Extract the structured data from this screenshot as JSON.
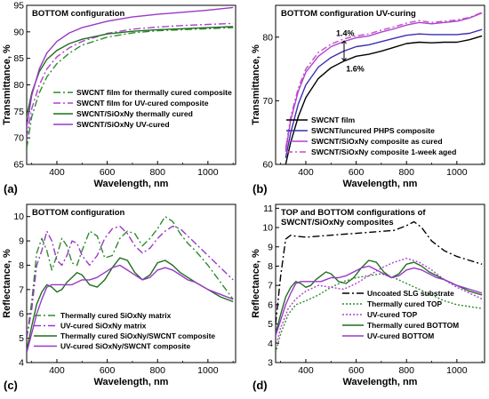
{
  "chart_data": [
    {
      "type": "line",
      "panel_label": "(a)",
      "title": "BOTTOM configuration",
      "xlabel": "Wavelength, nm",
      "ylabel": "Transmittance, %",
      "xlim": [
        280,
        1110
      ],
      "ylim": [
        65,
        95
      ],
      "xticks": [
        400,
        600,
        800,
        1000
      ],
      "yticks": [
        65,
        70,
        75,
        80,
        85,
        90,
        95
      ],
      "legend_position": "bottom-right",
      "series": [
        {
          "name": "SWCNT film for thermally cured composite",
          "color": "#2e8b2e",
          "dash": "8,3,2,3",
          "x": [
            280,
            300,
            330,
            360,
            400,
            450,
            500,
            600,
            700,
            800,
            900,
            1000,
            1100
          ],
          "y": [
            68,
            74,
            78.5,
            81.5,
            84,
            86,
            87.5,
            89,
            89.8,
            90.2,
            90.4,
            90.6,
            90.8
          ]
        },
        {
          "name": "SWCNT film for UV-cured composite",
          "color": "#b040d0",
          "dash": "8,3,2,3",
          "x": [
            280,
            300,
            330,
            360,
            400,
            450,
            500,
            600,
            700,
            800,
            900,
            1000,
            1100
          ],
          "y": [
            70,
            75.5,
            80,
            83,
            85.3,
            87,
            88.2,
            89.7,
            90.5,
            90.9,
            91.2,
            91.4,
            91.6
          ]
        },
        {
          "name": "SWCNT/SiOxNy thermally cured",
          "color": "#1f6e1f",
          "dash": "",
          "x": [
            280,
            300,
            330,
            360,
            400,
            450,
            500,
            600,
            700,
            800,
            900,
            1000,
            1100
          ],
          "y": [
            74,
            78.5,
            82.5,
            84.8,
            86.5,
            87.8,
            88.6,
            89.6,
            90.1,
            90.4,
            90.6,
            90.8,
            91
          ]
        },
        {
          "name": "SWCNT/SiOxNy UV-cured",
          "color": "#9a38c8",
          "dash": "",
          "x": [
            280,
            300,
            330,
            360,
            400,
            450,
            500,
            600,
            700,
            800,
            900,
            1000,
            1100
          ],
          "y": [
            72,
            78,
            83,
            86,
            88.2,
            89.8,
            90.8,
            92,
            92.8,
            93.3,
            93.7,
            94.1,
            94.6
          ]
        }
      ]
    },
    {
      "type": "line",
      "panel_label": "(b)",
      "title": "BOTTOM configuration UV-curing",
      "xlabel": "Wavelength, nm",
      "ylabel": "Transmittance, %",
      "xlim": [
        280,
        1110
      ],
      "ylim": [
        60,
        85
      ],
      "xticks": [
        400,
        600,
        800,
        1000
      ],
      "yticks": [
        60,
        70,
        80
      ],
      "legend_position": "bottom-right",
      "annotations": [
        {
          "text": "1.4%",
          "x": 520,
          "y": 80.2
        },
        {
          "text": "1.6%",
          "x": 560,
          "y": 74.6
        }
      ],
      "series": [
        {
          "name": "SWCNT film",
          "color": "#000000",
          "dash": "",
          "x": [
            320,
            340,
            370,
            400,
            450,
            500,
            550,
            600,
            650,
            700,
            750,
            800,
            850,
            900,
            950,
            1000,
            1050,
            1100
          ],
          "y": [
            60,
            63.5,
            67.5,
            70.5,
            73.5,
            75.2,
            76.2,
            77,
            77.3,
            77.8,
            78.4,
            79,
            79.2,
            79.1,
            79.2,
            79.2,
            79.6,
            80.2
          ]
        },
        {
          "name": "SWCNT/uncured PHPS composite",
          "color": "#3a2fb0",
          "dash": "",
          "x": [
            320,
            340,
            370,
            400,
            450,
            500,
            550,
            600,
            650,
            700,
            750,
            800,
            850,
            900,
            950,
            1000,
            1050,
            1100
          ],
          "y": [
            61,
            65,
            69.5,
            72.5,
            75.3,
            76.8,
            77.8,
            78.5,
            78.8,
            79.3,
            79.8,
            80.3,
            80.5,
            80.4,
            80.4,
            80.4,
            80.6,
            81.2
          ]
        },
        {
          "name": "SWCNT/SiOxNy composite as cured",
          "color": "#b040d0",
          "dash": "",
          "x": [
            320,
            340,
            370,
            400,
            450,
            500,
            550,
            600,
            650,
            700,
            750,
            800,
            850,
            900,
            950,
            1000,
            1050,
            1100
          ],
          "y": [
            62,
            67,
            71.5,
            74.5,
            77,
            78.5,
            79.3,
            79.9,
            80.2,
            80.8,
            81.3,
            81.9,
            82.3,
            82.1,
            82.3,
            82.5,
            83,
            83.8
          ]
        },
        {
          "name": "SWCNT/SiOxNy composite 1-week aged",
          "color": "#c050c0",
          "dash": "7,3,2,3",
          "x": [
            320,
            340,
            370,
            400,
            450,
            500,
            550,
            600,
            650,
            700,
            750,
            800,
            850,
            900,
            950,
            1000,
            1050,
            1100
          ],
          "y": [
            62.5,
            67.5,
            72,
            75,
            77.6,
            78.9,
            79.7,
            80.2,
            80.5,
            81.1,
            81.6,
            82.2,
            82.6,
            82.3,
            82.5,
            82.7,
            83.1,
            83.9
          ]
        }
      ]
    },
    {
      "type": "line",
      "panel_label": "(c)",
      "title": "BOTTOM configuration",
      "xlabel": "Wavelength, nm",
      "ylabel": "Reflectance, %",
      "xlim": [
        280,
        1110
      ],
      "ylim": [
        4,
        10.5
      ],
      "xticks": [
        400,
        600,
        800,
        1000
      ],
      "yticks": [
        4,
        5,
        6,
        7,
        8,
        9,
        10
      ],
      "legend_position": "bottom-left",
      "series": [
        {
          "name": "Thermally cured SiOxNy matrix",
          "color": "#2e8b2e",
          "dash": "8,3,2,3",
          "x": [
            280,
            300,
            320,
            340,
            360,
            380,
            400,
            420,
            440,
            460,
            480,
            500,
            530,
            560,
            590,
            620,
            650,
            680,
            710,
            740,
            770,
            800,
            830,
            860,
            890,
            920,
            950,
            1000,
            1050,
            1100
          ],
          "y": [
            5,
            6.5,
            8.5,
            9.1,
            8.6,
            7.8,
            8.4,
            9.1,
            8.8,
            8.1,
            8,
            8.6,
            9.4,
            9.2,
            8.3,
            8.4,
            9.1,
            9.4,
            9.3,
            8.8,
            9.1,
            9.5,
            10,
            9.8,
            9.3,
            8.9,
            8.6,
            8,
            7.3,
            6.6
          ]
        },
        {
          "name": "UV-cured SiOxNy matrix",
          "color": "#9a38c8",
          "dash": "8,3,2,3",
          "x": [
            280,
            300,
            320,
            340,
            360,
            380,
            400,
            420,
            440,
            460,
            480,
            500,
            530,
            560,
            590,
            620,
            650,
            680,
            710,
            740,
            770,
            800,
            830,
            860,
            890,
            920,
            950,
            1000,
            1050,
            1100
          ],
          "y": [
            5,
            6.2,
            8,
            8.6,
            9.4,
            9,
            8.2,
            8,
            8.4,
            9,
            8.9,
            8.4,
            8,
            8.4,
            9.1,
            9.5,
            9.6,
            9.3,
            8.8,
            8.5,
            8.7,
            9.1,
            9.4,
            9.6,
            9.5,
            9.2,
            8.9,
            8.4,
            7.9,
            7.4
          ]
        },
        {
          "name": "Thermally cured SiOxNy/SWCNT composite",
          "color": "#1f6e1f",
          "dash": "",
          "x": [
            280,
            300,
            320,
            340,
            360,
            380,
            400,
            420,
            440,
            460,
            480,
            500,
            530,
            560,
            590,
            620,
            650,
            680,
            710,
            740,
            770,
            800,
            830,
            860,
            890,
            920,
            950,
            1000,
            1050,
            1100
          ],
          "y": [
            4.5,
            5.5,
            6.4,
            6.9,
            7.2,
            7.1,
            6.9,
            7,
            7.3,
            7.5,
            7.7,
            7.6,
            7.2,
            7.1,
            7.4,
            7.9,
            8.3,
            8.2,
            7.7,
            7.4,
            7.6,
            8.1,
            8.2,
            8,
            7.7,
            7.5,
            7.3,
            7,
            6.7,
            6.5
          ]
        },
        {
          "name": "UV-cured SiOxNy/SWCNT composite",
          "color": "#9a38c8",
          "dash": "",
          "x": [
            280,
            300,
            320,
            340,
            360,
            380,
            400,
            420,
            440,
            460,
            480,
            500,
            530,
            560,
            590,
            620,
            650,
            680,
            710,
            740,
            770,
            800,
            830,
            860,
            890,
            920,
            950,
            1000,
            1050,
            1100
          ],
          "y": [
            4.4,
            5.2,
            6,
            6.6,
            7.1,
            7.2,
            7.2,
            7.2,
            7.2,
            7.2,
            7.3,
            7.4,
            7.4,
            7.5,
            7.7,
            7.9,
            8,
            7.8,
            7.6,
            7.4,
            7.5,
            7.8,
            7.9,
            7.8,
            7.6,
            7.4,
            7.3,
            7,
            6.8,
            6.6
          ]
        }
      ]
    },
    {
      "type": "line",
      "panel_label": "(d)",
      "title": "TOP and BOTTOM configurations of\nSWCNT/SiOxNy composites",
      "xlabel": "Wavelength, nm",
      "ylabel": "Reflectance, %",
      "xlim": [
        280,
        1110
      ],
      "ylim": [
        3,
        11.2
      ],
      "xticks": [
        400,
        600,
        800,
        1000
      ],
      "yticks": [
        3,
        4,
        5,
        6,
        7,
        8,
        9,
        10,
        11
      ],
      "legend_position": "bottom-right",
      "series": [
        {
          "name": "Uncoated SLG substrate",
          "color": "#000000",
          "dash": "8,3,2,3",
          "x": [
            280,
            300,
            320,
            340,
            360,
            400,
            450,
            500,
            550,
            600,
            650,
            700,
            750,
            800,
            830,
            860,
            900,
            950,
            1000,
            1050,
            1100
          ],
          "y": [
            5,
            7.5,
            9.4,
            9.6,
            9.55,
            9.5,
            9.55,
            9.6,
            9.65,
            9.7,
            9.75,
            9.8,
            9.85,
            10.1,
            10.3,
            10,
            9.3,
            8.8,
            8.5,
            8.3,
            8.1
          ]
        },
        {
          "name": "Thermally cured TOP",
          "color": "#2e8b2e",
          "dash": "2,2",
          "x": [
            280,
            300,
            330,
            360,
            400,
            450,
            500,
            550,
            600,
            650,
            700,
            750,
            800,
            850,
            900,
            950,
            1000,
            1050,
            1100
          ],
          "y": [
            3.5,
            4.5,
            5.5,
            6,
            6.2,
            6.5,
            6.9,
            7.2,
            7.4,
            7.5,
            7.6,
            7.4,
            7.1,
            6.8,
            6.5,
            6.2,
            6,
            5.9,
            5.8
          ]
        },
        {
          "name": "UV-cured TOP",
          "color": "#b040d0",
          "dash": "2,2",
          "x": [
            280,
            300,
            330,
            360,
            400,
            450,
            500,
            550,
            600,
            650,
            700,
            750,
            800,
            850,
            900,
            950,
            1000,
            1050,
            1100
          ],
          "y": [
            3.8,
            4.8,
            5.8,
            6.3,
            6.7,
            7,
            6.9,
            6.8,
            7.1,
            7.5,
            7.9,
            8.2,
            8.4,
            8.2,
            7.8,
            7.3,
            6.9,
            6.6,
            6.3
          ]
        },
        {
          "name": "Thermally cured BOTTOM",
          "color": "#1f6e1f",
          "dash": "",
          "x": [
            280,
            300,
            320,
            340,
            360,
            380,
            400,
            420,
            440,
            460,
            480,
            500,
            530,
            560,
            590,
            620,
            650,
            680,
            710,
            740,
            770,
            800,
            830,
            860,
            890,
            920,
            950,
            1000,
            1050,
            1100
          ],
          "y": [
            4.5,
            5.5,
            6.4,
            6.9,
            7.2,
            7.1,
            6.9,
            7,
            7.3,
            7.5,
            7.7,
            7.6,
            7.2,
            7.1,
            7.4,
            7.9,
            8.3,
            8.2,
            7.7,
            7.4,
            7.6,
            8.1,
            8.2,
            8,
            7.7,
            7.5,
            7.3,
            7,
            6.7,
            6.5
          ]
        },
        {
          "name": "UV-cured BOTTOM",
          "color": "#9a38c8",
          "dash": "",
          "x": [
            280,
            300,
            320,
            340,
            360,
            380,
            400,
            420,
            440,
            460,
            480,
            500,
            530,
            560,
            590,
            620,
            650,
            680,
            710,
            740,
            770,
            800,
            830,
            860,
            890,
            920,
            950,
            1000,
            1050,
            1100
          ],
          "y": [
            4.4,
            5.2,
            6,
            6.6,
            7.1,
            7.2,
            7.2,
            7.2,
            7.2,
            7.2,
            7.3,
            7.4,
            7.4,
            7.5,
            7.7,
            7.9,
            8,
            7.8,
            7.6,
            7.4,
            7.5,
            7.8,
            7.9,
            7.8,
            7.6,
            7.4,
            7.3,
            7,
            6.8,
            6.6
          ]
        }
      ]
    }
  ]
}
